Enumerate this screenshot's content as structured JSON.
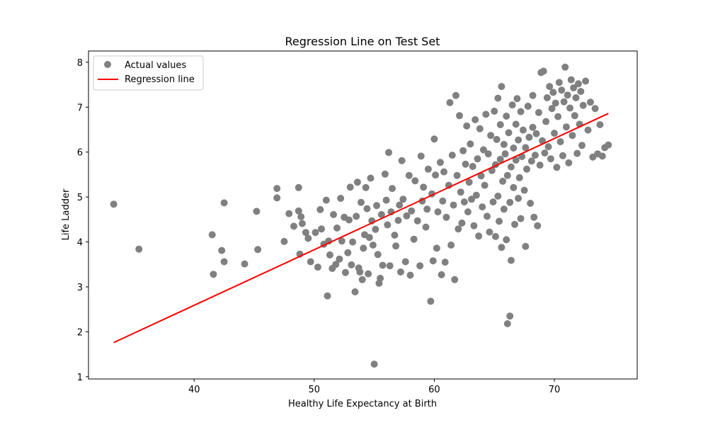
{
  "chart_data": {
    "type": "scatter",
    "title": "Regression Line on Test Set",
    "xlabel": "Healthy Life Expectancy at Birth",
    "ylabel": "Life Ladder",
    "xlim": [
      31.2,
      76.9
    ],
    "ylim": [
      0.95,
      8.25
    ],
    "xticks": [
      40,
      50,
      60,
      70
    ],
    "yticks": [
      1,
      2,
      3,
      4,
      5,
      6,
      7,
      8
    ],
    "grid": false,
    "legend_position": "upper-left",
    "colors": {
      "points": "#808080",
      "line": "#ff0000"
    },
    "series": [
      {
        "name": "Actual values",
        "kind": "scatter",
        "points": [
          [
            33.3,
            4.84
          ],
          [
            35.4,
            3.84
          ],
          [
            41.5,
            4.16
          ],
          [
            41.6,
            3.28
          ],
          [
            42.3,
            3.81
          ],
          [
            42.5,
            4.87
          ],
          [
            42.5,
            3.56
          ],
          [
            44.2,
            3.51
          ],
          [
            45.2,
            4.68
          ],
          [
            45.3,
            3.83
          ],
          [
            46.9,
            5.19
          ],
          [
            46.9,
            4.98
          ],
          [
            47.5,
            4.01
          ],
          [
            47.9,
            4.63
          ],
          [
            48.3,
            4.35
          ],
          [
            48.7,
            5.21
          ],
          [
            48.7,
            4.69
          ],
          [
            48.8,
            3.73
          ],
          [
            48.9,
            4.56
          ],
          [
            49.0,
            4.41
          ],
          [
            49.3,
            4.21
          ],
          [
            49.5,
            4.08
          ],
          [
            49.7,
            3.56
          ],
          [
            50.1,
            4.21
          ],
          [
            50.3,
            3.44
          ],
          [
            50.5,
            4.72
          ],
          [
            50.6,
            4.29
          ],
          [
            50.8,
            3.95
          ],
          [
            51.0,
            4.93
          ],
          [
            51.1,
            2.8
          ],
          [
            51.2,
            4.02
          ],
          [
            51.3,
            3.71
          ],
          [
            51.5,
            3.41
          ],
          [
            51.6,
            4.61
          ],
          [
            51.8,
            3.5
          ],
          [
            51.9,
            4.31
          ],
          [
            52.1,
            3.62
          ],
          [
            52.2,
            4.97
          ],
          [
            52.3,
            4.02
          ],
          [
            52.5,
            4.55
          ],
          [
            52.6,
            3.32
          ],
          [
            52.8,
            3.76
          ],
          [
            52.9,
            4.49
          ],
          [
            53.0,
            5.22
          ],
          [
            53.1,
            3.49
          ],
          [
            53.2,
            4.0
          ],
          [
            53.4,
            2.89
          ],
          [
            53.5,
            4.57
          ],
          [
            53.6,
            5.33
          ],
          [
            53.7,
            3.42
          ],
          [
            53.8,
            3.33
          ],
          [
            53.9,
            4.88
          ],
          [
            54.0,
            3.16
          ],
          [
            54.1,
            3.86
          ],
          [
            54.2,
            4.16
          ],
          [
            54.3,
            5.21
          ],
          [
            54.4,
            4.74
          ],
          [
            54.5,
            3.29
          ],
          [
            54.6,
            4.1
          ],
          [
            54.7,
            5.42
          ],
          [
            54.8,
            4.47
          ],
          [
            54.9,
            3.93
          ],
          [
            55.0,
            1.28
          ],
          [
            55.1,
            4.28
          ],
          [
            55.2,
            4.81
          ],
          [
            55.3,
            3.72
          ],
          [
            55.4,
            3.08
          ],
          [
            55.5,
            3.19
          ],
          [
            55.6,
            4.61
          ],
          [
            55.7,
            3.48
          ],
          [
            55.9,
            5.51
          ],
          [
            56.0,
            4.93
          ],
          [
            56.1,
            4.38
          ],
          [
            56.2,
            5.99
          ],
          [
            56.3,
            3.47
          ],
          [
            56.4,
            4.67
          ],
          [
            56.5,
            5.19
          ],
          [
            56.7,
            4.15
          ],
          [
            56.8,
            3.91
          ],
          [
            57.0,
            4.48
          ],
          [
            57.1,
            4.82
          ],
          [
            57.2,
            3.33
          ],
          [
            57.3,
            5.81
          ],
          [
            57.4,
            4.95
          ],
          [
            57.6,
            3.56
          ],
          [
            57.7,
            4.58
          ],
          [
            57.9,
            5.48
          ],
          [
            58.0,
            3.26
          ],
          [
            58.1,
            4.69
          ],
          [
            58.3,
            4.06
          ],
          [
            58.4,
            5.36
          ],
          [
            58.6,
            4.47
          ],
          [
            58.8,
            3.47
          ],
          [
            58.9,
            5.91
          ],
          [
            59.0,
            4.91
          ],
          [
            59.1,
            5.22
          ],
          [
            59.3,
            4.33
          ],
          [
            59.4,
            4.73
          ],
          [
            59.5,
            5.62
          ],
          [
            59.7,
            2.68
          ],
          [
            59.8,
            5.07
          ],
          [
            59.9,
            3.58
          ],
          [
            60.0,
            6.29
          ],
          [
            60.1,
            5.49
          ],
          [
            60.2,
            3.86
          ],
          [
            60.3,
            4.67
          ],
          [
            60.5,
            5.77
          ],
          [
            60.6,
            3.27
          ],
          [
            60.7,
            4.91
          ],
          [
            60.8,
            5.56
          ],
          [
            60.9,
            3.55
          ],
          [
            61.0,
            4.55
          ],
          [
            61.2,
            5.26
          ],
          [
            61.3,
            7.1
          ],
          [
            61.4,
            3.93
          ],
          [
            61.5,
            5.93
          ],
          [
            61.6,
            4.82
          ],
          [
            61.7,
            3.16
          ],
          [
            61.8,
            7.26
          ],
          [
            61.9,
            5.48
          ],
          [
            62.0,
            4.29
          ],
          [
            62.1,
            6.81
          ],
          [
            62.2,
            5.11
          ],
          [
            62.3,
            4.42
          ],
          [
            62.4,
            6.03
          ],
          [
            62.5,
            4.89
          ],
          [
            62.6,
            5.73
          ],
          [
            62.7,
            6.58
          ],
          [
            62.8,
            4.67
          ],
          [
            62.9,
            5.33
          ],
          [
            63.0,
            6.18
          ],
          [
            63.1,
            4.95
          ],
          [
            63.2,
            5.68
          ],
          [
            63.3,
            4.36
          ],
          [
            63.4,
            6.72
          ],
          [
            63.5,
            5.04
          ],
          [
            63.6,
            5.85
          ],
          [
            63.7,
            4.13
          ],
          [
            63.8,
            6.52
          ],
          [
            63.9,
            5.47
          ],
          [
            64.0,
            4.78
          ],
          [
            64.1,
            6.05
          ],
          [
            64.2,
            5.26
          ],
          [
            64.3,
            6.84
          ],
          [
            64.4,
            4.57
          ],
          [
            64.5,
            5.96
          ],
          [
            64.6,
            4.22
          ],
          [
            64.7,
            6.37
          ],
          [
            64.8,
            5.59
          ],
          [
            64.9,
            4.89
          ],
          [
            65.0,
            6.91
          ],
          [
            65.1,
            5.72
          ],
          [
            65.1,
            4.12
          ],
          [
            65.2,
            6.28
          ],
          [
            65.3,
            5.02
          ],
          [
            65.3,
            7.2
          ],
          [
            65.4,
            4.46
          ],
          [
            65.5,
            5.84
          ],
          [
            65.5,
            6.61
          ],
          [
            65.6,
            3.88
          ],
          [
            65.6,
            7.46
          ],
          [
            65.7,
            5.35
          ],
          [
            65.8,
            6.17
          ],
          [
            65.8,
            4.73
          ],
          [
            65.9,
            5.96
          ],
          [
            66.0,
            6.8
          ],
          [
            66.0,
            4.05
          ],
          [
            66.1,
            5.48
          ],
          [
            66.1,
            2.18
          ],
          [
            66.2,
            6.43
          ],
          [
            66.3,
            2.35
          ],
          [
            66.3,
            4.88
          ],
          [
            66.4,
            5.67
          ],
          [
            66.4,
            3.59
          ],
          [
            66.5,
            7.05
          ],
          [
            66.6,
            6.09
          ],
          [
            66.6,
            5.21
          ],
          [
            66.7,
            4.39
          ],
          [
            66.8,
            6.62
          ],
          [
            66.8,
            5.82
          ],
          [
            66.9,
            7.19
          ],
          [
            67.0,
            4.97
          ],
          [
            67.0,
            6.27
          ],
          [
            67.1,
            5.43
          ],
          [
            67.2,
            4.52
          ],
          [
            67.2,
            6.9
          ],
          [
            67.3,
            5.9
          ],
          [
            67.4,
            6.49
          ],
          [
            67.5,
            5.15
          ],
          [
            67.6,
            3.9
          ],
          [
            67.6,
            6.1
          ],
          [
            67.7,
            5.62
          ],
          [
            67.8,
            7.02
          ],
          [
            67.9,
            6.33
          ],
          [
            68.0,
            4.86
          ],
          [
            68.1,
            5.8
          ],
          [
            68.2,
            7.26
          ],
          [
            68.2,
            6.55
          ],
          [
            68.3,
            4.55
          ],
          [
            68.4,
            5.93
          ],
          [
            68.5,
            6.41
          ],
          [
            68.6,
            4.36
          ],
          [
            68.7,
            6.88
          ],
          [
            68.8,
            5.71
          ],
          [
            68.9,
            7.77
          ],
          [
            69.0,
            6.25
          ],
          [
            69.1,
            7.8
          ],
          [
            69.2,
            5.98
          ],
          [
            69.3,
            6.68
          ],
          [
            69.4,
            7.21
          ],
          [
            69.5,
            6.12
          ],
          [
            69.6,
            7.46
          ],
          [
            69.7,
            5.85
          ],
          [
            69.8,
            6.97
          ],
          [
            69.9,
            7.33
          ],
          [
            70.0,
            6.42
          ],
          [
            70.1,
            7.09
          ],
          [
            70.2,
            5.66
          ],
          [
            70.3,
            6.79
          ],
          [
            70.4,
            7.55
          ],
          [
            70.5,
            6.23
          ],
          [
            70.6,
            7.38
          ],
          [
            70.7,
            5.92
          ],
          [
            70.8,
            7.12
          ],
          [
            70.9,
            7.89
          ],
          [
            71.0,
            6.56
          ],
          [
            71.1,
            7.27
          ],
          [
            71.2,
            5.76
          ],
          [
            71.3,
            6.98
          ],
          [
            71.4,
            7.61
          ],
          [
            71.5,
            6.37
          ],
          [
            71.6,
            7.43
          ],
          [
            71.7,
            6.81
          ],
          [
            71.8,
            7.21
          ],
          [
            71.9,
            5.97
          ],
          [
            72.0,
            7.52
          ],
          [
            72.1,
            6.62
          ],
          [
            72.2,
            7.35
          ],
          [
            72.3,
            6.15
          ],
          [
            72.4,
            7.04
          ],
          [
            72.6,
            7.58
          ],
          [
            72.8,
            6.49
          ],
          [
            73.0,
            7.11
          ],
          [
            73.2,
            5.89
          ],
          [
            73.4,
            6.97
          ],
          [
            73.6,
            5.96
          ],
          [
            73.8,
            6.61
          ],
          [
            74.0,
            5.91
          ],
          [
            74.2,
            6.1
          ],
          [
            74.5,
            6.16
          ]
        ]
      },
      {
        "name": "Regression line",
        "kind": "line",
        "points": [
          [
            33.3,
            1.76
          ],
          [
            74.5,
            6.86
          ]
        ]
      }
    ]
  }
}
